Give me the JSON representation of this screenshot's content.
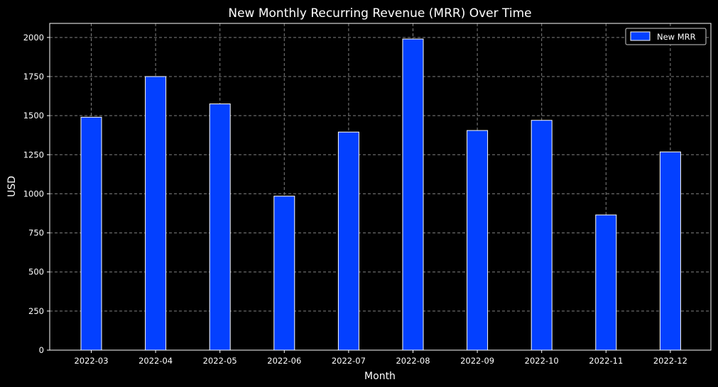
{
  "chart_data": {
    "type": "bar",
    "title": "New Monthly Recurring Revenue (MRR) Over Time",
    "xlabel": "Month",
    "ylabel": "USD",
    "categories": [
      "2022-03",
      "2022-04",
      "2022-05",
      "2022-06",
      "2022-07",
      "2022-08",
      "2022-09",
      "2022-10",
      "2022-11",
      "2022-12"
    ],
    "series": [
      {
        "name": "New MRR",
        "color": "#0340ff",
        "edge_color": "#ffffff",
        "values": [
          1490,
          1750,
          1575,
          985,
          1395,
          1990,
          1405,
          1470,
          865,
          1268
        ]
      }
    ],
    "ylim": [
      0,
      2090
    ],
    "yticks": [
      0,
      250,
      500,
      750,
      1000,
      1250,
      1500,
      1750,
      2000
    ],
    "grid": true,
    "legend_position": "top-right",
    "background": "#000000",
    "text_color": "#ffffff",
    "grid_color": "#808080"
  }
}
